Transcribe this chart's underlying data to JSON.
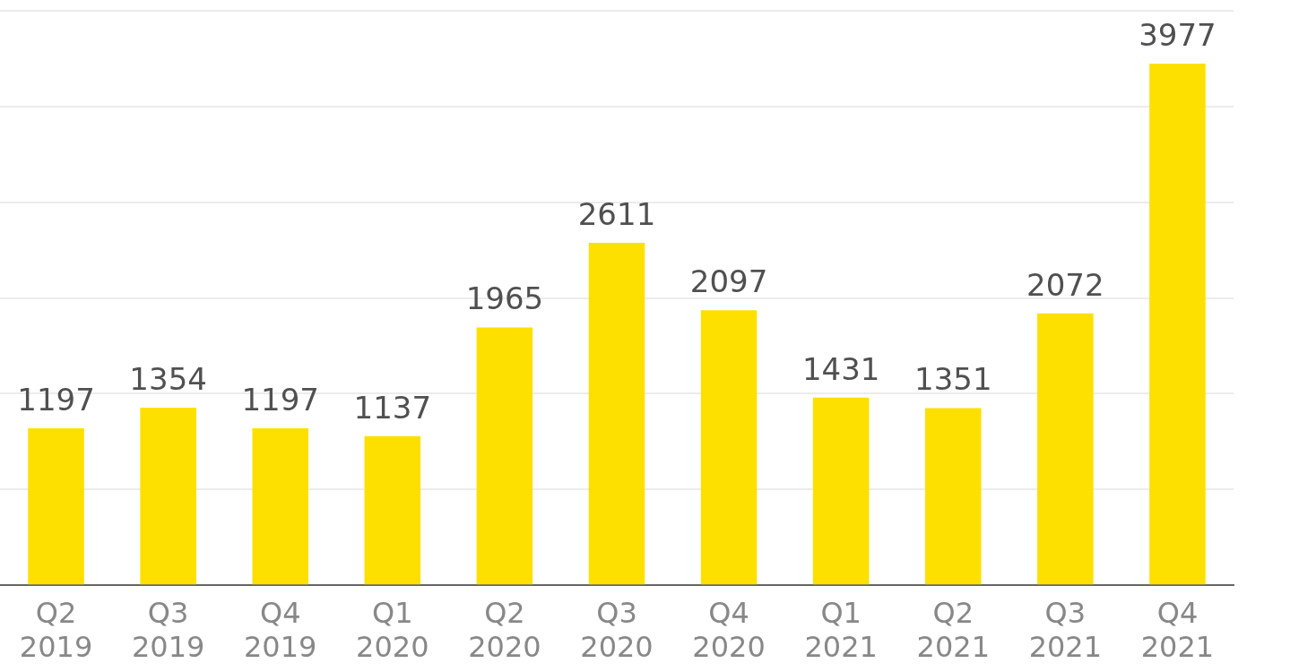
{
  "chart_data": {
    "type": "bar",
    "categories": [
      "Q2 2019",
      "Q3 2019",
      "Q4 2019",
      "Q1 2020",
      "Q2 2020",
      "Q3 2020",
      "Q4 2020",
      "Q1 2021",
      "Q2 2021",
      "Q3 2021",
      "Q4 2021"
    ],
    "values": [
      1197,
      1354,
      1197,
      1137,
      1965,
      2611,
      2097,
      1431,
      1351,
      2072,
      3977
    ],
    "color": "#fde000",
    "ylim": [
      0,
      4380
    ],
    "yticks": [
      {
        "value": 0,
        "label": null
      },
      {
        "value": 730,
        "label": null
      },
      {
        "value": 1460,
        "label": null
      },
      {
        "value": 2190,
        "label": null
      },
      {
        "value": 2920,
        "label": null
      },
      {
        "value": 3650,
        "label": null
      },
      {
        "value": 4380,
        "label": null
      }
    ],
    "tick_labels": "x",
    "grid": "y",
    "data_labels": true,
    "legend": false
  }
}
